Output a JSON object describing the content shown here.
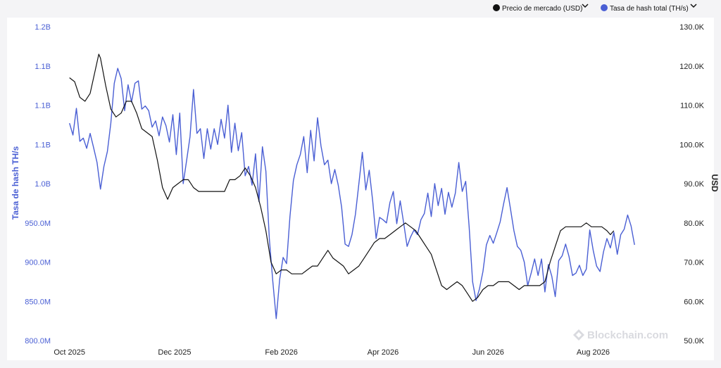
{
  "legend": {
    "price_label": "Precio de mercado (USD)",
    "hash_label": "Tasa de hash total (TH/s)"
  },
  "watermark": "Blockchain.com",
  "colors": {
    "price": "#111111",
    "hash": "#4a5fd4",
    "background": "#ffffff",
    "page": "#f4f4f6"
  },
  "icons": {
    "legend_toggle": "chevron-down-icon",
    "logo": "blockchain-logo-icon"
  },
  "chart_data": {
    "type": "line",
    "grid": false,
    "legend_position": "top-right",
    "x_axis": {
      "ticks": [
        {
          "label": "Oct 2025",
          "day": 0
        },
        {
          "label": "Dec 2025",
          "day": 61
        },
        {
          "label": "Feb 2026",
          "day": 123
        },
        {
          "label": "Apr 2026",
          "day": 182
        },
        {
          "label": "Jun 2026",
          "day": 243
        },
        {
          "label": "Aug 2026",
          "day": 304
        }
      ],
      "range": [
        -6,
        350
      ]
    },
    "y_left": {
      "label": "Tasa de hash TH/s",
      "min": 800000000,
      "max": 1200000000,
      "ticks": [
        {
          "label": "800.0M",
          "value": 800000000
        },
        {
          "label": "850.0M",
          "value": 850000000
        },
        {
          "label": "900.0M",
          "value": 900000000
        },
        {
          "label": "950.0M",
          "value": 950000000
        },
        {
          "label": "1.0B",
          "value": 1000000000
        },
        {
          "label": "1.1B",
          "value": 1050000000
        },
        {
          "label": "1.1B",
          "value": 1100000000
        },
        {
          "label": "1.1B",
          "value": 1150000000
        },
        {
          "label": "1.2B",
          "value": 1200000000
        }
      ]
    },
    "y_right": {
      "label": "USD",
      "min": 50000,
      "max": 130000,
      "ticks": [
        {
          "label": "50.0K",
          "value": 50000
        },
        {
          "label": "60.0K",
          "value": 60000
        },
        {
          "label": "70.0K",
          "value": 70000
        },
        {
          "label": "80.0K",
          "value": 80000
        },
        {
          "label": "90.0K",
          "value": 90000
        },
        {
          "label": "100.0K",
          "value": 100000
        },
        {
          "label": "110.0K",
          "value": 110000
        },
        {
          "label": "120.0K",
          "value": 120000
        },
        {
          "label": "130.0K",
          "value": 130000
        }
      ]
    },
    "series": [
      {
        "name": "Tasa de hash total (TH/s)",
        "axis": "left",
        "points": [
          [
            0,
            1077000000
          ],
          [
            2,
            1062000000
          ],
          [
            4,
            1096000000
          ],
          [
            6,
            1054000000
          ],
          [
            8,
            1058000000
          ],
          [
            10,
            1045000000
          ],
          [
            12,
            1064000000
          ],
          [
            14,
            1046000000
          ],
          [
            16,
            1027000000
          ],
          [
            18,
            993000000
          ],
          [
            20,
            1022000000
          ],
          [
            22,
            1041000000
          ],
          [
            24,
            1077000000
          ],
          [
            26,
            1128000000
          ],
          [
            28,
            1147000000
          ],
          [
            30,
            1134000000
          ],
          [
            32,
            1093000000
          ],
          [
            34,
            1126000000
          ],
          [
            36,
            1104000000
          ],
          [
            38,
            1128000000
          ],
          [
            40,
            1131000000
          ],
          [
            42,
            1095000000
          ],
          [
            44,
            1099000000
          ],
          [
            46,
            1093000000
          ],
          [
            48,
            1072000000
          ],
          [
            50,
            1080000000
          ],
          [
            52,
            1061000000
          ],
          [
            54,
            1085000000
          ],
          [
            56,
            1074000000
          ],
          [
            58,
            1053000000
          ],
          [
            60,
            1088000000
          ],
          [
            62,
            1037000000
          ],
          [
            64,
            1090000000
          ],
          [
            66,
            1000000000
          ],
          [
            68,
            1030000000
          ],
          [
            70,
            1060000000
          ],
          [
            72,
            1120000000
          ],
          [
            74,
            1064000000
          ],
          [
            76,
            1070000000
          ],
          [
            78,
            1032000000
          ],
          [
            80,
            1070000000
          ],
          [
            82,
            1044000000
          ],
          [
            84,
            1070000000
          ],
          [
            86,
            1050000000
          ],
          [
            88,
            1082000000
          ],
          [
            90,
            1058000000
          ],
          [
            92,
            1100000000
          ],
          [
            94,
            1040000000
          ],
          [
            96,
            1077000000
          ],
          [
            98,
            1042000000
          ],
          [
            100,
            1065000000
          ],
          [
            102,
            1010000000
          ],
          [
            104,
            1022000000
          ],
          [
            106,
            998000000
          ],
          [
            108,
            1038000000
          ],
          [
            110,
            977000000
          ],
          [
            112,
            1047000000
          ],
          [
            114,
            1016000000
          ],
          [
            116,
            930000000
          ],
          [
            118,
            876000000
          ],
          [
            120,
            828000000
          ],
          [
            122,
            878000000
          ],
          [
            124,
            906000000
          ],
          [
            126,
            898000000
          ],
          [
            128,
            958000000
          ],
          [
            130,
            1004000000
          ],
          [
            132,
            1024000000
          ],
          [
            134,
            1037000000
          ],
          [
            136,
            1060000000
          ],
          [
            138,
            1014000000
          ],
          [
            140,
            1068000000
          ],
          [
            142,
            1029000000
          ],
          [
            144,
            1084000000
          ],
          [
            146,
            1048000000
          ],
          [
            148,
            1024000000
          ],
          [
            150,
            1030000000
          ],
          [
            152,
            1000000000
          ],
          [
            154,
            1018000000
          ],
          [
            156,
            998000000
          ],
          [
            158,
            970000000
          ],
          [
            160,
            923000000
          ],
          [
            162,
            920000000
          ],
          [
            164,
            935000000
          ],
          [
            166,
            961000000
          ],
          [
            168,
            1000000000
          ],
          [
            170,
            1040000000
          ],
          [
            172,
            992000000
          ],
          [
            174,
            1017000000
          ],
          [
            176,
            978000000
          ],
          [
            178,
            930000000
          ],
          [
            180,
            957000000
          ],
          [
            182,
            954000000
          ],
          [
            184,
            950000000
          ],
          [
            186,
            976000000
          ],
          [
            188,
            990000000
          ],
          [
            190,
            949000000
          ],
          [
            192,
            978000000
          ],
          [
            194,
            950000000
          ],
          [
            196,
            920000000
          ],
          [
            198,
            932000000
          ],
          [
            200,
            941000000
          ],
          [
            202,
            935000000
          ],
          [
            204,
            954000000
          ],
          [
            206,
            962000000
          ],
          [
            208,
            988000000
          ],
          [
            210,
            958000000
          ],
          [
            212,
            1000000000
          ],
          [
            214,
            972000000
          ],
          [
            216,
            994000000
          ],
          [
            218,
            961000000
          ],
          [
            220,
            989000000
          ],
          [
            222,
            970000000
          ],
          [
            224,
            988000000
          ],
          [
            226,
            1027000000
          ],
          [
            228,
            990000000
          ],
          [
            230,
            1003000000
          ],
          [
            232,
            945000000
          ],
          [
            234,
            875000000
          ],
          [
            236,
            851000000
          ],
          [
            238,
            866000000
          ],
          [
            240,
            888000000
          ],
          [
            242,
            922000000
          ],
          [
            244,
            934000000
          ],
          [
            246,
            924000000
          ],
          [
            248,
            937000000
          ],
          [
            250,
            951000000
          ],
          [
            252,
            974000000
          ],
          [
            254,
            995000000
          ],
          [
            256,
            968000000
          ],
          [
            258,
            940000000
          ],
          [
            260,
            920000000
          ],
          [
            262,
            915000000
          ],
          [
            264,
            900000000
          ],
          [
            266,
            870000000
          ],
          [
            268,
            886000000
          ],
          [
            270,
            904000000
          ],
          [
            272,
            883000000
          ],
          [
            274,
            904000000
          ],
          [
            276,
            862000000
          ],
          [
            278,
            897000000
          ],
          [
            280,
            882000000
          ],
          [
            282,
            856000000
          ],
          [
            284,
            902000000
          ],
          [
            286,
            908000000
          ],
          [
            288,
            923000000
          ],
          [
            290,
            907000000
          ],
          [
            292,
            883000000
          ],
          [
            294,
            886000000
          ],
          [
            296,
            896000000
          ],
          [
            298,
            883000000
          ],
          [
            300,
            891000000
          ],
          [
            302,
            941000000
          ],
          [
            304,
            915000000
          ],
          [
            306,
            895000000
          ],
          [
            308,
            888000000
          ],
          [
            310,
            913000000
          ],
          [
            312,
            930000000
          ],
          [
            314,
            918000000
          ],
          [
            316,
            938000000
          ],
          [
            318,
            910000000
          ],
          [
            320,
            935000000
          ],
          [
            322,
            942000000
          ],
          [
            324,
            960000000
          ],
          [
            326,
            946000000
          ],
          [
            328,
            922000000
          ]
        ]
      },
      {
        "name": "Precio de mercado (USD)",
        "axis": "right",
        "points": [
          [
            0,
            117000
          ],
          [
            3,
            116000
          ],
          [
            6,
            112000
          ],
          [
            9,
            111000
          ],
          [
            12,
            113000
          ],
          [
            15,
            119000
          ],
          [
            17,
            123000
          ],
          [
            18,
            122000
          ],
          [
            21,
            115000
          ],
          [
            24,
            109000
          ],
          [
            27,
            107000
          ],
          [
            30,
            108000
          ],
          [
            33,
            111000
          ],
          [
            36,
            111000
          ],
          [
            39,
            108000
          ],
          [
            42,
            104000
          ],
          [
            45,
            103000
          ],
          [
            48,
            102000
          ],
          [
            51,
            96000
          ],
          [
            54,
            89000
          ],
          [
            57,
            86000
          ],
          [
            60,
            89000
          ],
          [
            63,
            90000
          ],
          [
            66,
            91000
          ],
          [
            69,
            91000
          ],
          [
            72,
            89000
          ],
          [
            75,
            88000
          ],
          [
            78,
            88000
          ],
          [
            81,
            88000
          ],
          [
            84,
            88000
          ],
          [
            87,
            88000
          ],
          [
            90,
            88000
          ],
          [
            93,
            91000
          ],
          [
            96,
            91000
          ],
          [
            99,
            92000
          ],
          [
            102,
            94000
          ],
          [
            105,
            92000
          ],
          [
            108,
            89000
          ],
          [
            111,
            84000
          ],
          [
            114,
            78000
          ],
          [
            117,
            70000
          ],
          [
            120,
            67000
          ],
          [
            123,
            68000
          ],
          [
            126,
            68000
          ],
          [
            129,
            67000
          ],
          [
            132,
            67000
          ],
          [
            135,
            67000
          ],
          [
            138,
            68000
          ],
          [
            141,
            69000
          ],
          [
            144,
            69000
          ],
          [
            147,
            71000
          ],
          [
            150,
            73000
          ],
          [
            153,
            71000
          ],
          [
            156,
            70000
          ],
          [
            159,
            69000
          ],
          [
            162,
            67000
          ],
          [
            165,
            68000
          ],
          [
            168,
            69000
          ],
          [
            171,
            71000
          ],
          [
            174,
            73000
          ],
          [
            177,
            75000
          ],
          [
            180,
            76000
          ],
          [
            183,
            76000
          ],
          [
            186,
            77000
          ],
          [
            189,
            78000
          ],
          [
            192,
            79000
          ],
          [
            195,
            80000
          ],
          [
            198,
            79000
          ],
          [
            201,
            78000
          ],
          [
            204,
            76000
          ],
          [
            207,
            74000
          ],
          [
            210,
            72000
          ],
          [
            213,
            68000
          ],
          [
            216,
            64000
          ],
          [
            219,
            63000
          ],
          [
            222,
            64000
          ],
          [
            225,
            65000
          ],
          [
            228,
            64000
          ],
          [
            231,
            62000
          ],
          [
            234,
            60000
          ],
          [
            237,
            61000
          ],
          [
            240,
            63000
          ],
          [
            243,
            64000
          ],
          [
            246,
            64000
          ],
          [
            249,
            65000
          ],
          [
            252,
            65000
          ],
          [
            255,
            65000
          ],
          [
            258,
            64000
          ],
          [
            261,
            63000
          ],
          [
            264,
            64000
          ],
          [
            267,
            64000
          ],
          [
            270,
            64000
          ],
          [
            273,
            64000
          ],
          [
            276,
            65000
          ],
          [
            279,
            70000
          ],
          [
            282,
            74000
          ],
          [
            285,
            78000
          ],
          [
            288,
            79000
          ],
          [
            291,
            79000
          ],
          [
            294,
            79000
          ],
          [
            297,
            79000
          ],
          [
            300,
            80000
          ],
          [
            303,
            79000
          ],
          [
            306,
            79000
          ],
          [
            309,
            79000
          ],
          [
            312,
            78000
          ],
          [
            314,
            77000
          ],
          [
            316,
            78000
          ]
        ]
      }
    ]
  }
}
